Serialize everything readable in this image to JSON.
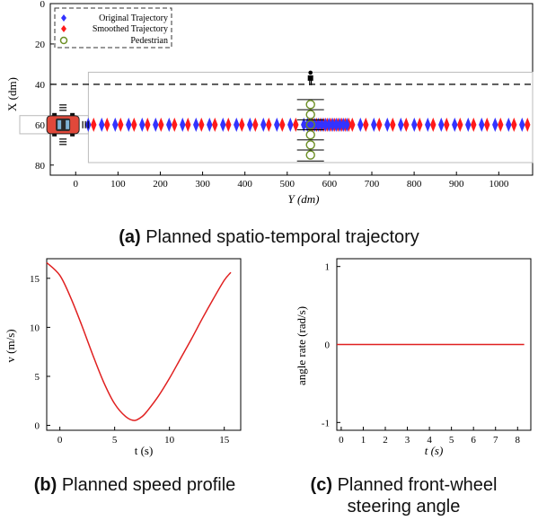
{
  "chart_data": [
    {
      "type": "scatter",
      "panel": "(a)",
      "caption_tag": "(a)",
      "caption_text": "Planned spatio-temporal trajectory",
      "xlabel": "Y (dm)",
      "ylabel": "X (dm)",
      "xlim": [
        -60,
        1080
      ],
      "ylim": [
        0,
        85
      ],
      "y_inverted": true,
      "xticks": [
        0,
        100,
        200,
        300,
        400,
        500,
        600,
        700,
        800,
        900,
        1000
      ],
      "yticks": [
        0,
        20,
        40,
        60,
        80
      ],
      "legend": [
        "Original Trajectory",
        "Smoothed Trajectory",
        "Pedestrian"
      ],
      "legend_position": "top-left",
      "colors": {
        "original": "#3333ff",
        "smoothed": "#ff1a1a",
        "pedestrian": "#6b8e23"
      },
      "lane_line_x": 40,
      "trajectory_x": 60,
      "trajectory_y_start": 0,
      "trajectory_y_end": 1080,
      "dense_region": [
        510,
        640
      ],
      "pedestrian_y": 555,
      "pedestrian_x": [
        50,
        55,
        60,
        65,
        70,
        75
      ],
      "pedestrian_icon_x": 40,
      "vehicle_y": -30,
      "vehicle_x": 60
    },
    {
      "type": "line",
      "panel": "(b)",
      "caption_tag": "(b)",
      "caption_text": "Planned speed profile",
      "xlabel": "t (s)",
      "ylabel": "v (m/s)",
      "xlim": [
        -1.2,
        16.5
      ],
      "ylim": [
        -0.5,
        17
      ],
      "xticks": [
        0,
        5,
        10,
        15
      ],
      "yticks": [
        0,
        5,
        10,
        15
      ],
      "color": "#e02020",
      "x": [
        -1.2,
        0,
        1,
        2,
        3,
        4,
        5,
        6,
        6.8,
        7.5,
        8,
        9,
        10,
        11,
        12,
        13,
        14,
        15,
        15.6
      ],
      "y": [
        16.6,
        15.3,
        13.0,
        10.2,
        7.2,
        4.4,
        2.2,
        0.9,
        0.5,
        0.9,
        1.5,
        3.0,
        4.8,
        6.8,
        8.8,
        10.9,
        12.9,
        14.8,
        15.6
      ]
    },
    {
      "type": "line",
      "panel": "(c)",
      "caption_tag": "(c)",
      "caption_lines": [
        "Planned front-wheel",
        "steering angle"
      ],
      "xlabel": "t (s)",
      "ylabel": "angle rate (rad/s)",
      "xlim": [
        -0.2,
        8.6
      ],
      "ylim": [
        -1.1,
        1.1
      ],
      "xticks": [
        0,
        1,
        2,
        3,
        4,
        5,
        6,
        7,
        8
      ],
      "yticks": [
        1,
        0,
        -1
      ],
      "ytick_labels": [
        "1",
        "0",
        "-1"
      ],
      "color": "#e02020",
      "x": [
        -0.2,
        8.3
      ],
      "y": [
        0,
        0
      ]
    }
  ]
}
